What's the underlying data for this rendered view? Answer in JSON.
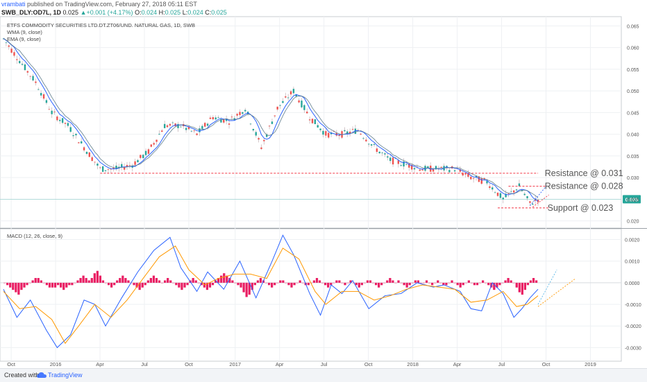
{
  "header": {
    "user": "vrambati",
    "published": "published on TradingView.com, February 27, 2018 05:11 EST",
    "symbol": "SWB_DLY:OD7L, 1D",
    "price": "0.025",
    "change": "+0.001 (+4.17%)",
    "ohlc_o_label": "O:",
    "ohlc_o": "0.024",
    "ohlc_h_label": "H:",
    "ohlc_h": "0.025",
    "ohlc_l_label": "L:",
    "ohlc_l": "0.024",
    "ohlc_c_label": "C:",
    "ohlc_c": "0.025"
  },
  "chart_data": [
    {
      "type": "candlestick",
      "title": "ETFS COMMODITY SECURITIES LTD.DT.ZT06/UND. NATURAL GAS, 1D, SWB",
      "legend": [
        "WMA (9, close)",
        "EMA (9, close)"
      ],
      "y_ticks": [
        "0.065",
        "0.060",
        "0.055",
        "0.050",
        "0.045",
        "0.040",
        "0.035",
        "0.030",
        "0.025",
        "0.020"
      ],
      "ylim": [
        0.0185,
        0.0665
      ],
      "x_ticks": [
        "Oct",
        "2016",
        "Apr",
        "Jul",
        "Oct",
        "2017",
        "Apr",
        "Jul",
        "Oct",
        "2018",
        "Apr",
        "Jul",
        "Oct",
        "2019"
      ],
      "last_price_label": "0.025",
      "price_path": [
        [
          0,
          0.062
        ],
        [
          6,
          0.057
        ],
        [
          12,
          0.052
        ],
        [
          18,
          0.045
        ],
        [
          24,
          0.042
        ],
        [
          30,
          0.037
        ],
        [
          36,
          0.032
        ],
        [
          42,
          0.032
        ],
        [
          48,
          0.033
        ],
        [
          54,
          0.036
        ],
        [
          60,
          0.042
        ],
        [
          66,
          0.042
        ],
        [
          72,
          0.04
        ],
        [
          78,
          0.044
        ],
        [
          84,
          0.043
        ],
        [
          90,
          0.046
        ],
        [
          96,
          0.037
        ],
        [
          102,
          0.046
        ],
        [
          108,
          0.05
        ],
        [
          114,
          0.044
        ],
        [
          120,
          0.04
        ],
        [
          126,
          0.04
        ],
        [
          132,
          0.041
        ],
        [
          138,
          0.037
        ],
        [
          144,
          0.034
        ],
        [
          150,
          0.033
        ],
        [
          156,
          0.032
        ],
        [
          162,
          0.032
        ],
        [
          168,
          0.032
        ],
        [
          174,
          0.03
        ],
        [
          180,
          0.029
        ],
        [
          186,
          0.025
        ],
        [
          192,
          0.028
        ],
        [
          196,
          0.024
        ],
        [
          199,
          0.025
        ]
      ],
      "annotations": [
        {
          "label": "Resistance @ 0.031",
          "value": 0.031
        },
        {
          "label": "Resistance @ 0.028",
          "value": 0.028
        },
        {
          "label": "Support @ 0.023",
          "value": 0.023
        }
      ]
    },
    {
      "type": "line",
      "title": "MACD (12, 26, close, 9)",
      "y_ticks": [
        "0.0020",
        "0.0010",
        "0.0000",
        "-0.0010",
        "-0.0020",
        "-0.0030"
      ],
      "ylim": [
        -0.0035,
        0.0024
      ],
      "macd": [
        [
          0,
          -0.0003
        ],
        [
          5,
          -0.0016
        ],
        [
          10,
          -0.0008
        ],
        [
          16,
          -0.0022
        ],
        [
          20,
          -0.003
        ],
        [
          25,
          -0.0024
        ],
        [
          30,
          -0.0008
        ],
        [
          34,
          -0.001
        ],
        [
          38,
          -0.002
        ],
        [
          44,
          -0.0007
        ],
        [
          50,
          0.0005
        ],
        [
          56,
          0.0015
        ],
        [
          62,
          0.0021
        ],
        [
          66,
          0.0007
        ],
        [
          72,
          -0.0004
        ],
        [
          76,
          0.0005
        ],
        [
          82,
          -0.0003
        ],
        [
          88,
          0.001
        ],
        [
          94,
          -0.0007
        ],
        [
          100,
          0.001
        ],
        [
          104,
          0.0022
        ],
        [
          108,
          0.0013
        ],
        [
          114,
          -0.0005
        ],
        [
          118,
          -0.0015
        ],
        [
          122,
          -0.0001
        ],
        [
          126,
          -0.0005
        ],
        [
          130,
          0.0001
        ],
        [
          136,
          -0.0012
        ],
        [
          142,
          -0.0006
        ],
        [
          148,
          -0.0005
        ],
        [
          154,
          0.0
        ],
        [
          160,
          -0.0002
        ],
        [
          164,
          -0.0001
        ],
        [
          170,
          -0.0004
        ],
        [
          174,
          -0.0012
        ],
        [
          178,
          -0.0013
        ],
        [
          182,
          0.0
        ],
        [
          186,
          -0.0005
        ],
        [
          190,
          -0.0016
        ],
        [
          193,
          -0.0012
        ],
        [
          196,
          -0.0007
        ],
        [
          199,
          -0.0003
        ]
      ],
      "signal": [
        [
          0,
          -0.0004
        ],
        [
          6,
          -0.0012
        ],
        [
          12,
          -0.0011
        ],
        [
          18,
          -0.0017
        ],
        [
          23,
          -0.0028
        ],
        [
          28,
          -0.002
        ],
        [
          34,
          -0.001
        ],
        [
          40,
          -0.0016
        ],
        [
          46,
          -0.0008
        ],
        [
          52,
          0.0002
        ],
        [
          58,
          0.0012
        ],
        [
          64,
          0.0017
        ],
        [
          69,
          0.0006
        ],
        [
          75,
          -0.0001
        ],
        [
          80,
          0.0002
        ],
        [
          86,
          0.0004
        ],
        [
          92,
          0.0004
        ],
        [
          98,
          0.0002
        ],
        [
          104,
          0.0016
        ],
        [
          110,
          0.0011
        ],
        [
          116,
          -0.0004
        ],
        [
          120,
          -0.001
        ],
        [
          126,
          -0.0004
        ],
        [
          132,
          -0.0004
        ],
        [
          138,
          -0.0008
        ],
        [
          144,
          -0.0006
        ],
        [
          150,
          -0.0003
        ],
        [
          156,
          -0.0001
        ],
        [
          162,
          -0.0002
        ],
        [
          168,
          -0.0003
        ],
        [
          174,
          -0.0009
        ],
        [
          180,
          -0.0008
        ],
        [
          186,
          -0.0004
        ],
        [
          191,
          -0.0011
        ],
        [
          195,
          -0.001
        ],
        [
          199,
          -0.0006
        ]
      ],
      "histogram": [
        0,
        -1,
        -2,
        -3,
        -4,
        -5,
        -3,
        -2,
        -1,
        0,
        1,
        2,
        2,
        1,
        0,
        -1,
        -2,
        -2,
        -2,
        -1,
        -2,
        -3,
        -2,
        -1,
        -1,
        0,
        1,
        2,
        3,
        2,
        1,
        2,
        4,
        5,
        3,
        1,
        0,
        -1,
        -2,
        -1,
        1,
        2,
        3,
        2,
        1,
        0,
        -1,
        -2,
        -3,
        -2,
        -1,
        1,
        2,
        3,
        2,
        1,
        0,
        1,
        2,
        1,
        0,
        -1,
        -2,
        -3,
        -2,
        -1,
        1,
        2,
        1,
        0,
        -1,
        -2,
        -3,
        -2,
        -1,
        1,
        2,
        3,
        4,
        3,
        2,
        1,
        0,
        -1,
        -2,
        -4,
        -6,
        -5,
        -3,
        -1,
        1,
        2,
        1,
        0,
        -1,
        -2,
        -1,
        0,
        1,
        1,
        0,
        -1,
        -2,
        -1,
        0,
        1,
        0,
        -1,
        -1,
        0,
        1,
        2,
        1,
        0,
        -1,
        -2,
        -1,
        0,
        1,
        1,
        0,
        -1,
        0,
        1,
        0,
        -1,
        -2,
        -1,
        0,
        1,
        1,
        0,
        -1,
        -2,
        -1,
        0,
        1,
        2,
        1,
        0,
        1,
        0,
        -1,
        -2,
        -1,
        0,
        1,
        1,
        0,
        0,
        1,
        0,
        -1,
        0,
        1,
        0,
        -1,
        -1,
        0,
        1,
        0,
        -1,
        -2,
        -1,
        0,
        1,
        0,
        -1,
        -1,
        0,
        1,
        0,
        -1,
        -2,
        -3,
        -2,
        -1,
        0,
        1,
        2,
        1,
        0,
        -2,
        -4,
        -5,
        -3,
        -1,
        1,
        2,
        1
      ]
    }
  ],
  "footer": {
    "created": "Created with",
    "brand": "TradingView"
  },
  "colors": {
    "up": "#26a69a",
    "down": "#ef5350",
    "wma": "#2962ff",
    "ema": "#ff9800",
    "hist": "#e91e63",
    "resistance": "#f23645",
    "last_price": "#26a69a"
  }
}
